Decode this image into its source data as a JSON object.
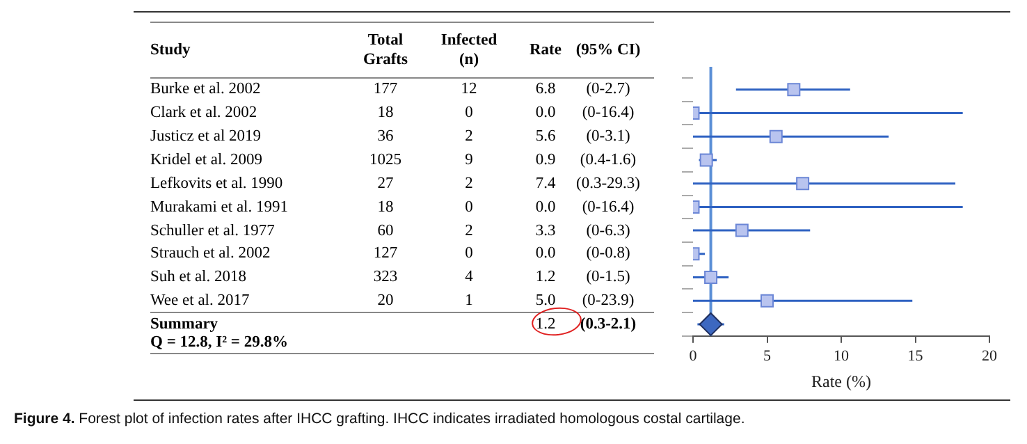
{
  "chart_data": {
    "type": "scatter",
    "categories": [
      null,
      null,
      null,
      null,
      null,
      null,
      null,
      null,
      null,
      null,
      null
    ],
    "orientation": "horizontal",
    "series": [
      {
        "type": "scatter",
        "marker": "square",
        "color": "#b9c4ef",
        "values": [
          6.8,
          0.0,
          5.6,
          0.9,
          7.4,
          0.0,
          3.3,
          0.0,
          1.2,
          5.0,
          null
        ],
        "errors": [
          [
            2.9,
            10.6
          ],
          [
            0,
            18.2
          ],
          [
            0,
            13.2
          ],
          [
            0.4,
            1.6
          ],
          [
            0,
            17.7
          ],
          [
            0,
            18.2
          ],
          [
            0,
            7.9
          ],
          [
            0,
            0.8
          ],
          [
            0,
            2.4
          ],
          [
            0,
            14.8
          ],
          null
        ],
        "value_labels": [
          "6.8",
          "0.0",
          "5.6",
          "0.9",
          "7.4",
          "0.0",
          "3.3",
          "0.0",
          "1.2",
          "5.0",
          null
        ]
      },
      {
        "type": "scatter",
        "marker": "diamond",
        "color": "#3d68c0",
        "values": [
          null,
          null,
          null,
          null,
          null,
          null,
          null,
          null,
          null,
          null,
          1.2
        ],
        "errors": [
          null,
          null,
          null,
          null,
          null,
          null,
          null,
          null,
          null,
          null,
          [
            0.3,
            2.1
          ]
        ]
      }
    ],
    "xlabel": "Rate (%)",
    "xlim": [
      0,
      20
    ],
    "xticks": [
      0,
      5,
      10,
      15,
      20
    ],
    "grid": false,
    "legend": false,
    "ref_lines": [
      {
        "axis": "x",
        "value": 1.2,
        "color": "#5b8fd6"
      }
    ],
    "annotations": [
      "Study",
      "Total\nGrafts",
      "Infected\n(n)",
      "Rate",
      "(95% CI)",
      "Burke et al. 2002",
      "177",
      "12",
      "(0-2.7)",
      "Clark et al. 2002",
      "18",
      "0",
      "(0-16.4)",
      "Justicz et al 2019",
      "36",
      "2",
      "(0-3.1)",
      "Kridel et al. 2009",
      "1025",
      "9",
      "(0.4-1.6)",
      "Lefkovits et al. 1990",
      "27",
      "2",
      "(0.3-29.3)",
      "Murakami et al. 1991",
      "18",
      "0",
      "(0-16.4)",
      "Schuller et al. 1977",
      "60",
      "2",
      "(0-6.3)",
      "Strauch et al. 2002",
      "127",
      "0",
      "(0-0.8)",
      "Suh et al. 2018",
      "323",
      "4",
      "(0-1.5)",
      "Wee et al. 2017",
      "20",
      "1",
      "(0-23.9)",
      "Summary",
      "1.2",
      "(0.3-2.1)",
      "Q = 12.8, I² = 29.8%",
      "Figure 4. Forest plot of infection rates after IHCC grafting. IHCC indicates irradiated homologous costal cartilage."
    ]
  }
}
